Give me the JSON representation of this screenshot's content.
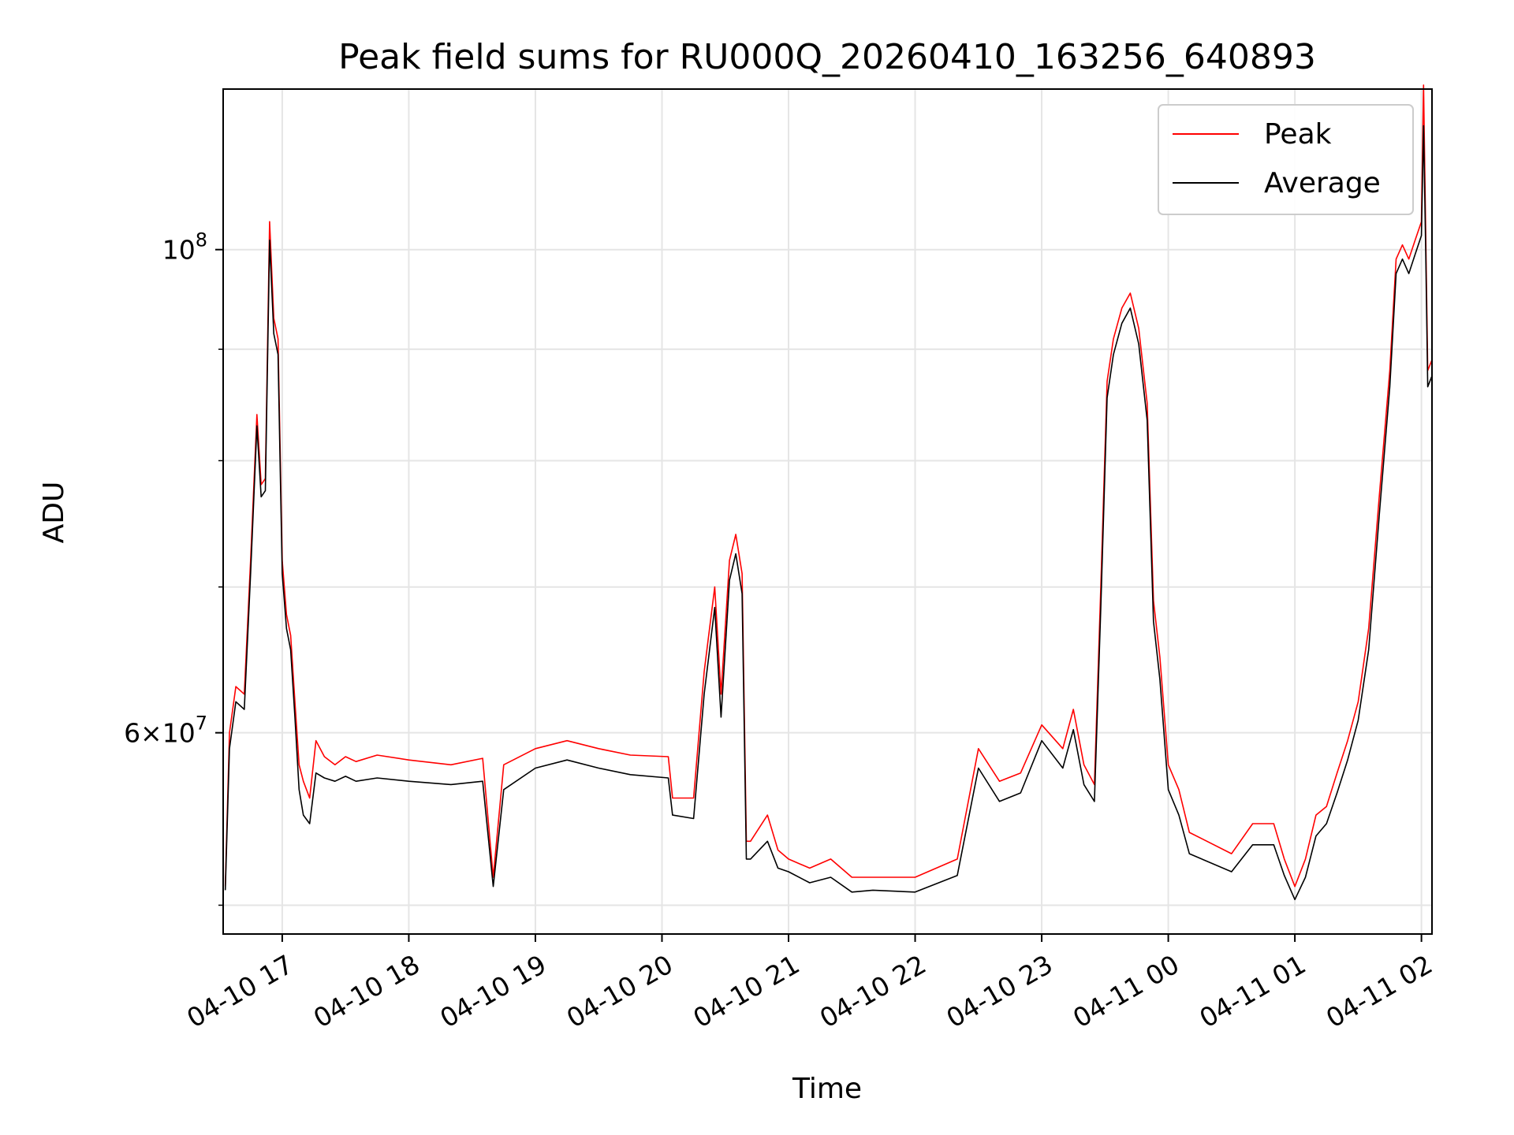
{
  "chart_data": {
    "type": "line",
    "title": "Peak field sums for RU000Q_20260410_163256_640893",
    "xlabel": "Time",
    "ylabel": "ADU",
    "x_scale": "time",
    "y_scale": "log",
    "xlim": [
      "2026-04-10 16:32",
      "2026-04-11 02:05"
    ],
    "ylim": [
      48500000,
      118500000
    ],
    "x_tick_labels": [
      "04-10 17",
      "04-10 18",
      "04-10 19",
      "04-10 20",
      "04-10 21",
      "04-10 22",
      "04-10 23",
      "04-11 00",
      "04-11 01",
      "04-11 02"
    ],
    "x_tick_times": [
      "2026-04-10 17:00",
      "2026-04-10 18:00",
      "2026-04-10 19:00",
      "2026-04-10 20:00",
      "2026-04-10 21:00",
      "2026-04-10 22:00",
      "2026-04-10 23:00",
      "2026-04-11 00:00",
      "2026-04-11 01:00",
      "2026-04-11 02:00"
    ],
    "y_major_ticks": [
      {
        "value": 100000000,
        "base": "10",
        "exp": "8",
        "mantissa": ""
      },
      {
        "value": 60000000,
        "base": "10",
        "exp": "7",
        "mantissa": "6"
      }
    ],
    "y_minor_ticks": [
      50000000,
      70000000,
      80000000,
      90000000
    ],
    "grid": true,
    "legend_position": "top-right",
    "series": [
      {
        "name": "Peak",
        "color": "#ff0000",
        "x": [
          "2026-04-10 16:33",
          "2026-04-10 16:35",
          "2026-04-10 16:38",
          "2026-04-10 16:42",
          "2026-04-10 16:45",
          "2026-04-10 16:48",
          "2026-04-10 16:50",
          "2026-04-10 16:52",
          "2026-04-10 16:54",
          "2026-04-10 16:56",
          "2026-04-10 16:58",
          "2026-04-10 17:00",
          "2026-04-10 17:02",
          "2026-04-10 17:04",
          "2026-04-10 17:06",
          "2026-04-10 17:08",
          "2026-04-10 17:10",
          "2026-04-10 17:13",
          "2026-04-10 17:16",
          "2026-04-10 17:20",
          "2026-04-10 17:25",
          "2026-04-10 17:30",
          "2026-04-10 17:35",
          "2026-04-10 17:45",
          "2026-04-10 18:00",
          "2026-04-10 18:20",
          "2026-04-10 18:35",
          "2026-04-10 18:40",
          "2026-04-10 18:45",
          "2026-04-10 19:00",
          "2026-04-10 19:15",
          "2026-04-10 19:30",
          "2026-04-10 19:45",
          "2026-04-10 20:03",
          "2026-04-10 20:05",
          "2026-04-10 20:15",
          "2026-04-10 20:20",
          "2026-04-10 20:25",
          "2026-04-10 20:28",
          "2026-04-10 20:32",
          "2026-04-10 20:35",
          "2026-04-10 20:38",
          "2026-04-10 20:40",
          "2026-04-10 20:42",
          "2026-04-10 20:50",
          "2026-04-10 20:55",
          "2026-04-10 21:00",
          "2026-04-10 21:10",
          "2026-04-10 21:20",
          "2026-04-10 21:30",
          "2026-04-10 21:40",
          "2026-04-10 22:00",
          "2026-04-10 22:20",
          "2026-04-10 22:30",
          "2026-04-10 22:40",
          "2026-04-10 22:50",
          "2026-04-10 23:00",
          "2026-04-10 23:10",
          "2026-04-10 23:15",
          "2026-04-10 23:20",
          "2026-04-10 23:25",
          "2026-04-10 23:28",
          "2026-04-10 23:31",
          "2026-04-10 23:34",
          "2026-04-10 23:38",
          "2026-04-10 23:42",
          "2026-04-10 23:46",
          "2026-04-10 23:50",
          "2026-04-10 23:53",
          "2026-04-10 23:56",
          "2026-04-11 00:00",
          "2026-04-11 00:05",
          "2026-04-11 00:10",
          "2026-04-11 00:30",
          "2026-04-11 00:40",
          "2026-04-11 00:50",
          "2026-04-11 00:55",
          "2026-04-11 01:00",
          "2026-04-11 01:05",
          "2026-04-11 01:10",
          "2026-04-11 01:15",
          "2026-04-11 01:20",
          "2026-04-11 01:25",
          "2026-04-11 01:30",
          "2026-04-11 01:35",
          "2026-04-11 01:40",
          "2026-04-11 01:45",
          "2026-04-11 01:48",
          "2026-04-11 01:51",
          "2026-04-11 01:54",
          "2026-04-11 01:57",
          "2026-04-11 02:00",
          "2026-04-11 02:01",
          "2026-04-11 02:02",
          "2026-04-11 02:03",
          "2026-04-11 02:05"
        ],
        "y": [
          51000000,
          60000000,
          63000000,
          62500000,
          72000000,
          84000000,
          78000000,
          78500000,
          103000000,
          93000000,
          91000000,
          72000000,
          68000000,
          66500000,
          62000000,
          58000000,
          57000000,
          56000000,
          59500000,
          58500000,
          58000000,
          58500000,
          58200000,
          58600000,
          58300000,
          58000000,
          58400000,
          51500000,
          58000000,
          59000000,
          59500000,
          59000000,
          58600000,
          58500000,
          56000000,
          56000000,
          64000000,
          70000000,
          62500000,
          72000000,
          74000000,
          71000000,
          53500000,
          53500000,
          55000000,
          53000000,
          52500000,
          52000000,
          52500000,
          51500000,
          51500000,
          51500000,
          52500000,
          59000000,
          57000000,
          57500000,
          60500000,
          59000000,
          61500000,
          58000000,
          56800000,
          70000000,
          87000000,
          91000000,
          94000000,
          95500000,
          92000000,
          85000000,
          69000000,
          65000000,
          58000000,
          56500000,
          54000000,
          52800000,
          54500000,
          54500000,
          52500000,
          51000000,
          52500000,
          55000000,
          55500000,
          57500000,
          59500000,
          62000000,
          67000000,
          77000000,
          88000000,
          99000000,
          100500000,
          99000000,
          101000000,
          103000000,
          119000000,
          102000000,
          88000000,
          89000000
        ]
      },
      {
        "name": "Average",
        "color": "#000000",
        "x": [
          "2026-04-10 16:33",
          "2026-04-10 16:35",
          "2026-04-10 16:38",
          "2026-04-10 16:42",
          "2026-04-10 16:45",
          "2026-04-10 16:48",
          "2026-04-10 16:50",
          "2026-04-10 16:52",
          "2026-04-10 16:54",
          "2026-04-10 16:56",
          "2026-04-10 16:58",
          "2026-04-10 17:00",
          "2026-04-10 17:02",
          "2026-04-10 17:04",
          "2026-04-10 17:06",
          "2026-04-10 17:08",
          "2026-04-10 17:10",
          "2026-04-10 17:13",
          "2026-04-10 17:16",
          "2026-04-10 17:20",
          "2026-04-10 17:25",
          "2026-04-10 17:30",
          "2026-04-10 17:35",
          "2026-04-10 17:45",
          "2026-04-10 18:00",
          "2026-04-10 18:20",
          "2026-04-10 18:35",
          "2026-04-10 18:40",
          "2026-04-10 18:45",
          "2026-04-10 19:00",
          "2026-04-10 19:15",
          "2026-04-10 19:30",
          "2026-04-10 19:45",
          "2026-04-10 20:03",
          "2026-04-10 20:05",
          "2026-04-10 20:15",
          "2026-04-10 20:20",
          "2026-04-10 20:25",
          "2026-04-10 20:28",
          "2026-04-10 20:32",
          "2026-04-10 20:35",
          "2026-04-10 20:38",
          "2026-04-10 20:40",
          "2026-04-10 20:42",
          "2026-04-10 20:50",
          "2026-04-10 20:55",
          "2026-04-10 21:00",
          "2026-04-10 21:10",
          "2026-04-10 21:20",
          "2026-04-10 21:30",
          "2026-04-10 21:40",
          "2026-04-10 22:00",
          "2026-04-10 22:20",
          "2026-04-10 22:30",
          "2026-04-10 22:40",
          "2026-04-10 22:50",
          "2026-04-10 23:00",
          "2026-04-10 23:10",
          "2026-04-10 23:15",
          "2026-04-10 23:20",
          "2026-04-10 23:25",
          "2026-04-10 23:28",
          "2026-04-10 23:31",
          "2026-04-10 23:34",
          "2026-04-10 23:38",
          "2026-04-10 23:42",
          "2026-04-10 23:46",
          "2026-04-10 23:50",
          "2026-04-10 23:53",
          "2026-04-10 23:56",
          "2026-04-11 00:00",
          "2026-04-11 00:05",
          "2026-04-11 00:10",
          "2026-04-11 00:30",
          "2026-04-11 00:40",
          "2026-04-11 00:50",
          "2026-04-11 00:55",
          "2026-04-11 01:00",
          "2026-04-11 01:05",
          "2026-04-11 01:10",
          "2026-04-11 01:15",
          "2026-04-11 01:20",
          "2026-04-11 01:25",
          "2026-04-11 01:30",
          "2026-04-11 01:35",
          "2026-04-11 01:40",
          "2026-04-11 01:45",
          "2026-04-11 01:48",
          "2026-04-11 01:51",
          "2026-04-11 01:54",
          "2026-04-11 01:57",
          "2026-04-11 02:00",
          "2026-04-11 02:01",
          "2026-04-11 02:02",
          "2026-04-11 02:03",
          "2026-04-11 02:05"
        ],
        "y": [
          50800000,
          59000000,
          62000000,
          61500000,
          71000000,
          83000000,
          77000000,
          77500000,
          101000000,
          91500000,
          89500000,
          71000000,
          67000000,
          65500000,
          61000000,
          56500000,
          55000000,
          54500000,
          57500000,
          57200000,
          57000000,
          57300000,
          57000000,
          57200000,
          57000000,
          56800000,
          57000000,
          51000000,
          56500000,
          57800000,
          58300000,
          57800000,
          57400000,
          57200000,
          55000000,
          54800000,
          62500000,
          68500000,
          61000000,
          70500000,
          72500000,
          69500000,
          52500000,
          52500000,
          53500000,
          52000000,
          51800000,
          51200000,
          51500000,
          50700000,
          50800000,
          50700000,
          51600000,
          57800000,
          55800000,
          56300000,
          59500000,
          57800000,
          60200000,
          56800000,
          55800000,
          68500000,
          85500000,
          89500000,
          92500000,
          94000000,
          90500000,
          83500000,
          67500000,
          63500000,
          56500000,
          55000000,
          52800000,
          51800000,
          53300000,
          53300000,
          51600000,
          50300000,
          51500000,
          53800000,
          54500000,
          56300000,
          58300000,
          60800000,
          65500000,
          75500000,
          86500000,
          97500000,
          99000000,
          97500000,
          99500000,
          101500000,
          114000000,
          100000000,
          86500000,
          87500000
        ]
      }
    ]
  }
}
